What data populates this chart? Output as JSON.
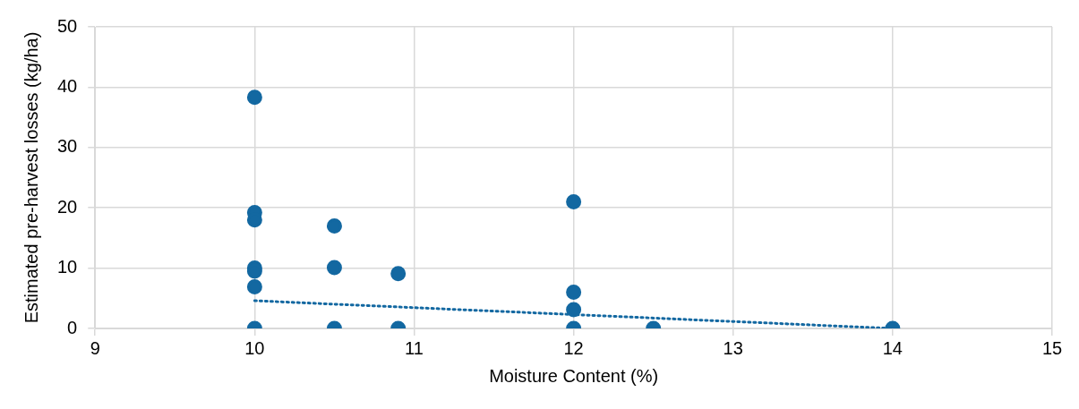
{
  "chart_data": {
    "type": "scatter",
    "xlabel": "Moisture Content (%)",
    "ylabel": "Estimated pre-harvest losses (kg/ha)",
    "xlim": [
      9,
      15
    ],
    "xticks": [
      9,
      10,
      11,
      12,
      13,
      14,
      15
    ],
    "ylim": [
      0,
      50
    ],
    "yticks": [
      0,
      10,
      20,
      30,
      40,
      50
    ],
    "grid": true,
    "legend": false,
    "marker": "circle",
    "series": [
      {
        "type": "scatter",
        "color": "#1368a1",
        "x": [
          10,
          10,
          10,
          10,
          10,
          10,
          10,
          10.5,
          10.5,
          10.5,
          10.9,
          10.9,
          12,
          12,
          12,
          12,
          12.5,
          14
        ],
        "values": [
          38.3,
          19.2,
          18,
          10,
          9.5,
          6.9,
          0,
          17,
          10.1,
          0,
          9.1,
          0,
          21,
          6,
          3.1,
          0,
          0,
          0
        ]
      },
      {
        "type": "line",
        "color": "#1368a1",
        "line_style": "dotted",
        "marker": "none",
        "x": [
          10,
          14
        ],
        "values": [
          4.6,
          0
        ]
      }
    ]
  }
}
